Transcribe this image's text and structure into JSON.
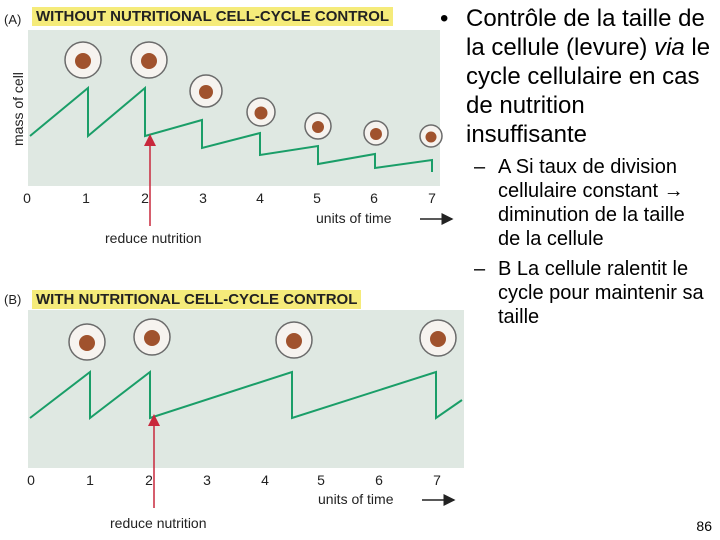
{
  "panel_a": {
    "label": "(A)",
    "title": "WITHOUT NUTRITIONAL CELL-CYCLE CONTROL",
    "ylabel": "mass of cell",
    "xlabel": "units of time",
    "annotation": "reduce nutrition",
    "ticks": [
      "0",
      "1",
      "2",
      "3",
      "4",
      "5",
      "6",
      "7"
    ]
  },
  "panel_b": {
    "label": "(B)",
    "title": "WITH NUTRITIONAL CELL-CYCLE CONTROL",
    "xlabel": "units of time",
    "annotation": "reduce nutrition",
    "ticks": [
      "0",
      "1",
      "2",
      "3",
      "4",
      "5",
      "6",
      "7"
    ]
  },
  "colors": {
    "curve": "#1a9e68",
    "nucleus": "#a0522d",
    "arrow": "#c8283c",
    "panel_bg": "#dfe8e2",
    "title_bg": "#f5eb7a"
  },
  "bullet": {
    "pre": "Contrôle de la taille de la cellule (levure) ",
    "italic": "via",
    "post": " le cycle cellulaire en cas de nutrition insuffisante"
  },
  "subs": [
    {
      "pre": "A Si taux de division cellulaire constant ",
      "arrow": "→",
      "post": " diminution de la taille de la cellule"
    },
    {
      "pre": "B La cellule ralentit le cycle pour maintenir sa taille",
      "arrow": "",
      "post": ""
    }
  ],
  "page_number": "86"
}
